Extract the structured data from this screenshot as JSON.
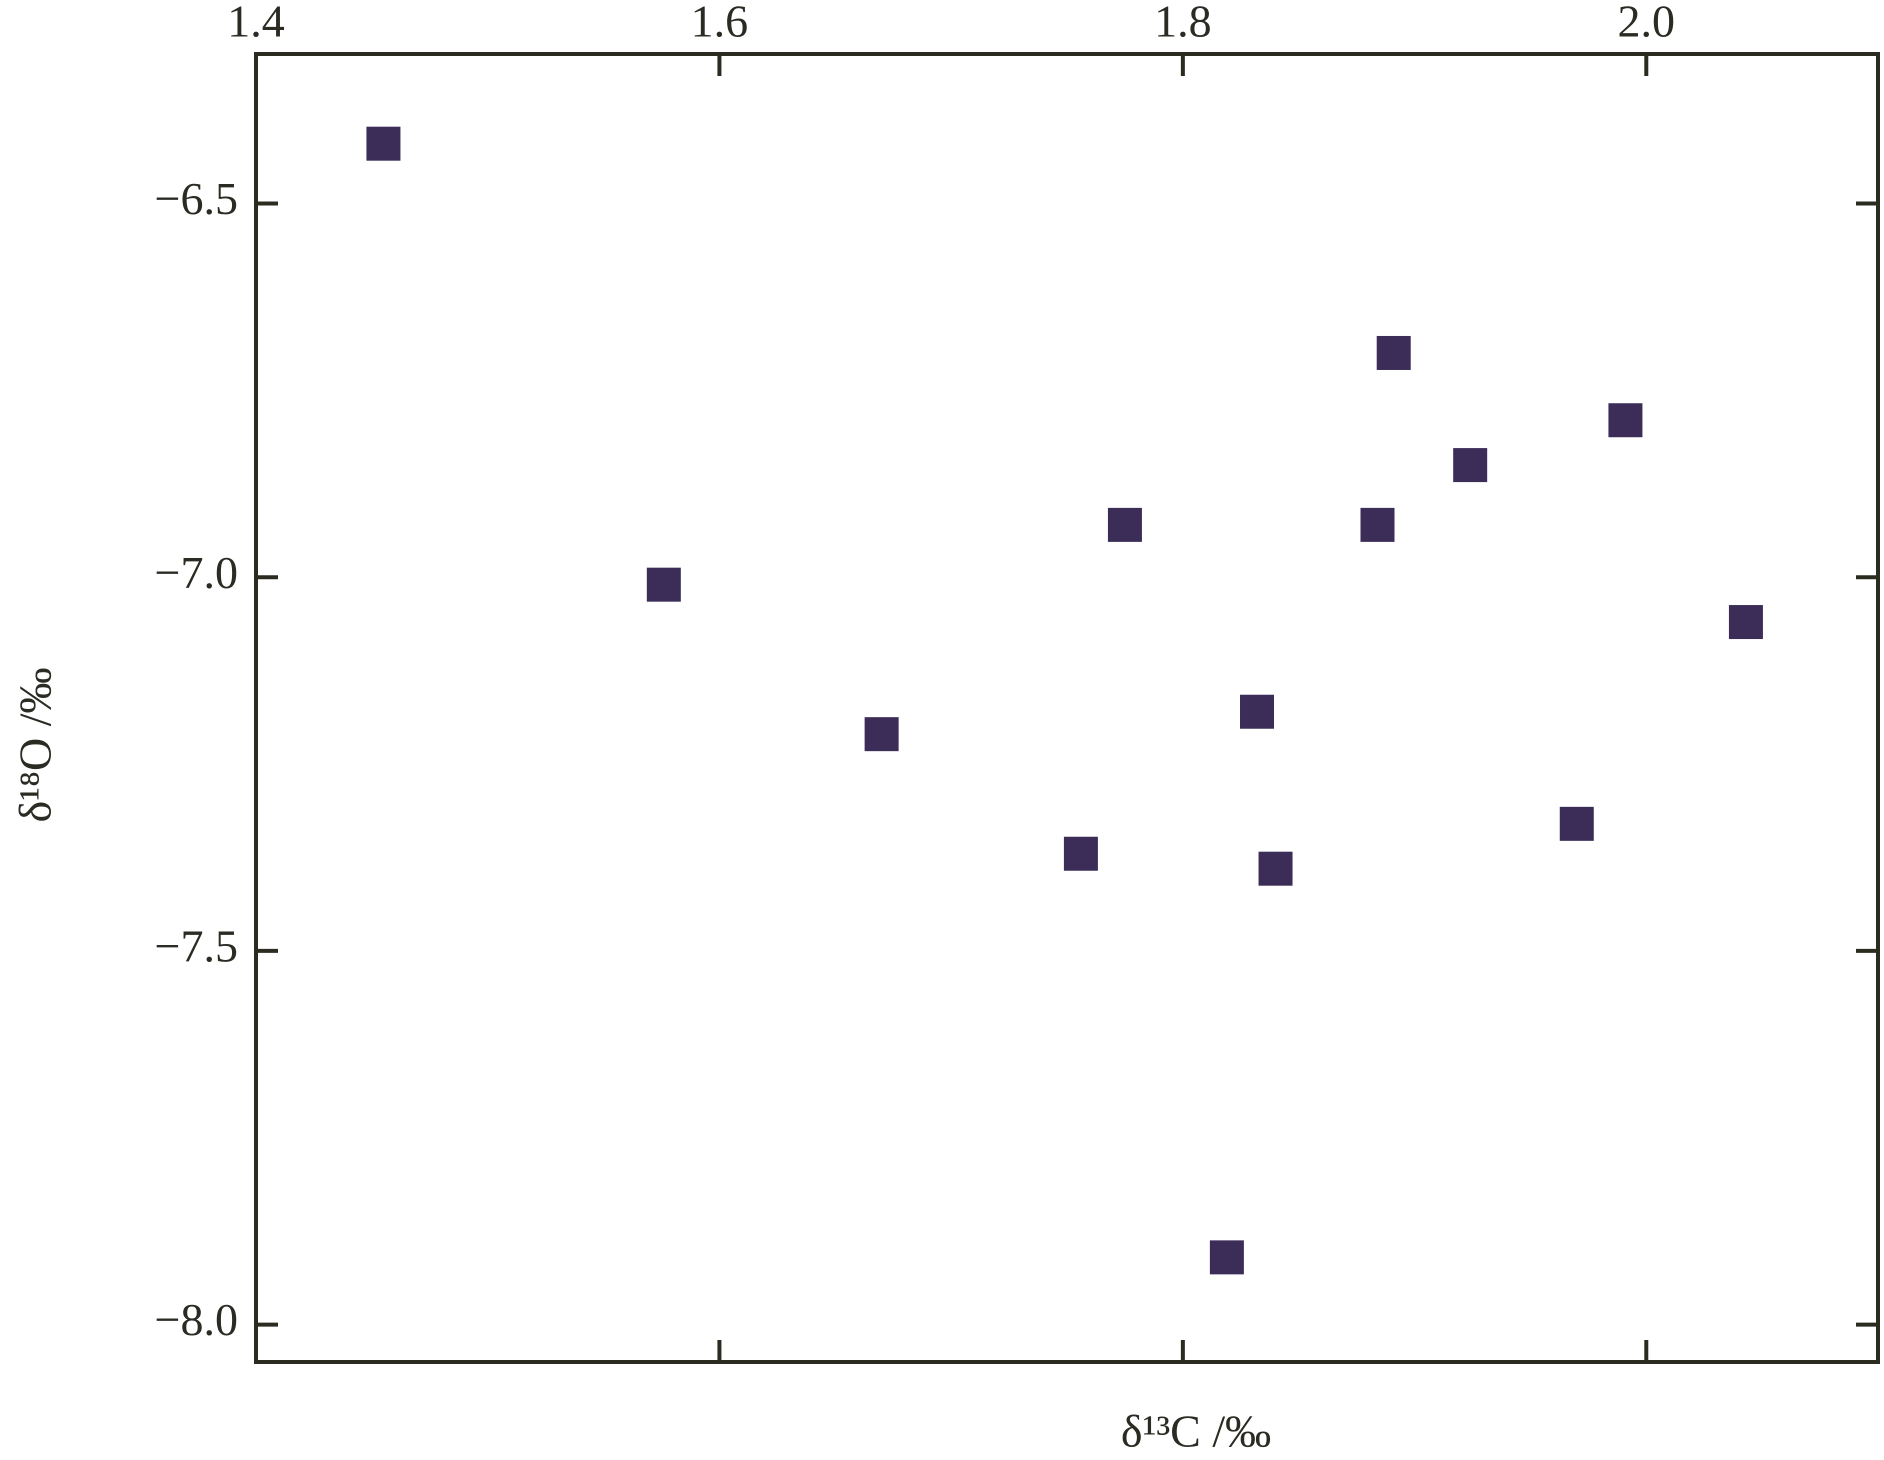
{
  "chart_data": {
    "type": "scatter",
    "xlabel": "δ¹³C /‰",
    "ylabel": "δ¹⁸O /‰",
    "x": [
      1.455,
      1.576,
      1.67,
      1.756,
      1.775,
      1.819,
      1.832,
      1.84,
      1.884,
      1.891,
      1.924,
      1.991,
      1.97,
      2.043
    ],
    "values": [
      -6.42,
      -7.01,
      -7.21,
      -7.37,
      -6.93,
      -7.91,
      -7.18,
      -7.39,
      -6.93,
      -6.7,
      -6.85,
      -6.79,
      -7.33,
      -7.06
    ],
    "color": "#3b2d58",
    "marker": "square",
    "xlim": [
      1.4,
      2.1
    ],
    "xticks": [
      1.4,
      1.6,
      1.8,
      {
        "value": 2,
        "label": "2.0"
      }
    ],
    "ylim": [
      -8.05,
      -6.3
    ],
    "yticks": [
      {
        "value": -6.5,
        "label": "−6.5"
      },
      {
        "value": -7,
        "label": "−7.0"
      },
      {
        "value": -7.5,
        "label": "−7.5"
      },
      {
        "value": -8,
        "label": "−8.0"
      }
    ],
    "grid": false
  }
}
